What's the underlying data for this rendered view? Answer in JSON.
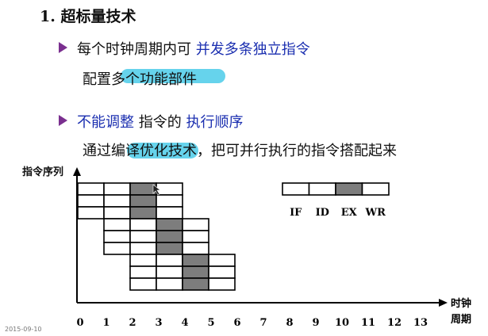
{
  "heading": "1. 超标量技术",
  "bullet1": {
    "prefix": "每个时钟周期内可 ",
    "emph": "并发多条独立指令"
  },
  "sub1": {
    "prefix": "配置",
    "rest": "多个功能部件"
  },
  "bullet2": {
    "emph1": "不能调整",
    "mid": " 指令的 ",
    "emph2": "执行顺序"
  },
  "sub2": "通过编译优化技术，把可并行执行的指令搭配起来",
  "diagram": {
    "ylabel": "指令序列",
    "xlabel": [
      "时钟",
      "周期"
    ],
    "stages": [
      "IF",
      "ID",
      "EX",
      "WR"
    ],
    "highlight_stage": "EX",
    "x_ticks": [
      "0",
      "1",
      "2",
      "3",
      "4",
      "5",
      "6",
      "7",
      "8",
      "9",
      "10",
      "11",
      "12",
      "13"
    ],
    "instruction_groups": [
      {
        "start_cycle": 0,
        "count": 3
      },
      {
        "start_cycle": 1,
        "count": 3
      },
      {
        "start_cycle": 2,
        "count": 3
      }
    ]
  },
  "date_stamp": "2015-09-10",
  "colors": {
    "emphasis_text": "#1b2fb0",
    "ex_fill": "#7d7d7d",
    "marker": "#33c4e6",
    "bullet": "#7a2f8f"
  }
}
